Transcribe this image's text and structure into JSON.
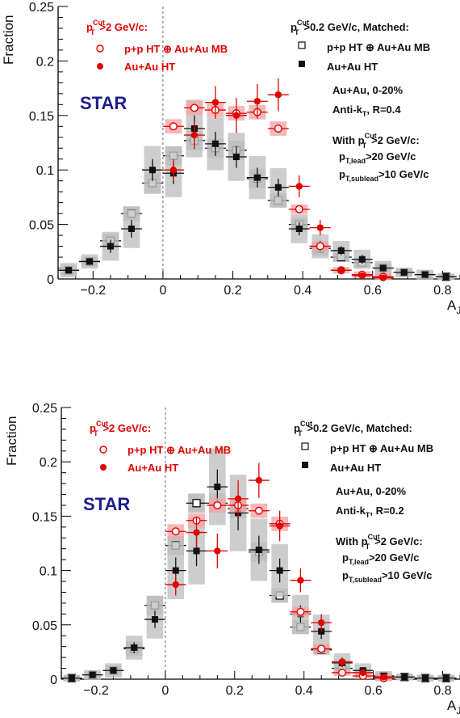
{
  "chart_data": [
    {
      "type": "scatter",
      "xlabel": "A",
      "xlabel_sub": "J",
      "ylabel": "Fraction",
      "xlim": [
        -0.3,
        0.85
      ],
      "ylim": [
        0,
        0.25
      ],
      "xticks": [
        -0.2,
        0,
        0.2,
        0.4,
        0.6,
        0.8
      ],
      "xtick_labels": [
        "−0.2",
        "0",
        "0.2",
        "0.4",
        "0.6",
        "0.8"
      ],
      "yticks": [
        0,
        0.05,
        0.1,
        0.15,
        0.2,
        0.25
      ],
      "ytick_labels": [
        "0",
        "0.05",
        "0.1",
        "0.15",
        "0.2",
        "0.25"
      ],
      "legend_left": {
        "header": {
          "main": "p",
          "sup": "Cut",
          "sub": "T",
          "rest": ">2 GeV/c:"
        },
        "entries": [
          "p+p HT ⊕ Au+Au MB",
          "Au+Au HT"
        ]
      },
      "legend_right": {
        "header": {
          "main": "p",
          "sup": "Cut",
          "sub": "T",
          "rest": ">0.2 GeV/c, Matched:"
        },
        "entries": [
          "p+p HT ⊕ Au+Au MB",
          "Au+Au HT"
        ]
      },
      "star_label": "STAR",
      "annotation": {
        "line1": "Au+Au, 0-20%",
        "line2": {
          "main": "Anti-k",
          "sub": "T",
          "rest": ", R=0.4"
        },
        "line3": {
          "main": "With p",
          "sup": "Cut",
          "sub": "T",
          "rest": ">2 GeV/c:"
        },
        "line4": {
          "main": "p",
          "sub": "T,lead",
          "rest": ">20 GeV/c"
        },
        "line5": {
          "main": "p",
          "sub": "T,sublead",
          "rest": ">10 GeV/c"
        }
      },
      "series": [
        {
          "name": "p+p HT ⊕ Au+Au MB (p_T^Cut > 0.2 GeV/c, Matched)",
          "marker": "open-square",
          "color": "#111111",
          "band": "#b0b0b0",
          "x": [
            -0.27,
            -0.21,
            -0.15,
            -0.09,
            -0.03,
            0.03,
            0.09,
            0.15,
            0.21,
            0.27,
            0.33,
            0.39,
            0.45,
            0.51,
            0.57,
            0.63,
            0.69,
            0.75,
            0.81
          ],
          "y": [
            0.008,
            0.016,
            0.035,
            0.06,
            0.088,
            0.113,
            0.127,
            0.12,
            0.118,
            0.092,
            0.072,
            0.05,
            0.028,
            0.02,
            0.015,
            0.01,
            0.006,
            0.004,
            0.002
          ],
          "yerr": [
            0.002,
            0.002,
            0.003,
            0.003,
            0.004,
            0.004,
            0.004,
            0.004,
            0.004,
            0.004,
            0.003,
            0.003,
            0.003,
            0.002,
            0.002,
            0.002,
            0.001,
            0.001,
            0.001
          ]
        },
        {
          "name": "Au+Au HT (p_T^Cut > 0.2 GeV/c, Matched)",
          "marker": "filled-square",
          "color": "#111111",
          "band": "#c0c0c0",
          "x": [
            -0.27,
            -0.21,
            -0.15,
            -0.09,
            -0.03,
            0.03,
            0.09,
            0.15,
            0.21,
            0.27,
            0.33,
            0.39,
            0.45,
            0.51,
            0.57,
            0.63,
            0.69,
            0.75,
            0.81
          ],
          "y": [
            0.008,
            0.016,
            0.03,
            0.046,
            0.1,
            0.097,
            0.138,
            0.124,
            0.112,
            0.093,
            0.084,
            0.046,
            0.03,
            0.026,
            0.018,
            0.01,
            0.006,
            0.004,
            0.002
          ],
          "yerr": [
            0.003,
            0.003,
            0.006,
            0.008,
            0.01,
            0.01,
            0.012,
            0.011,
            0.01,
            0.009,
            0.008,
            0.006,
            0.005,
            0.004,
            0.004,
            0.003,
            0.002,
            0.002,
            0.001
          ]
        },
        {
          "name": "p+p HT ⊕ Au+Au MB (p_T^Cut > 2 GeV/c)",
          "marker": "open-circle",
          "color": "#e00000",
          "band": "#f4a6a6",
          "x": [
            0.03,
            0.09,
            0.15,
            0.21,
            0.27,
            0.33,
            0.39,
            0.45,
            0.51,
            0.57,
            0.63
          ],
          "y": [
            0.14,
            0.157,
            0.155,
            0.152,
            0.153,
            0.138,
            0.064,
            0.03,
            0.008,
            0.004,
            0.002
          ],
          "yerr": [
            0.003,
            0.003,
            0.003,
            0.003,
            0.003,
            0.003,
            0.002,
            0.002,
            0.001,
            0.001,
            0.001
          ]
        },
        {
          "name": "Au+Au HT (p_T^Cut > 2 GeV/c)",
          "marker": "filled-circle",
          "color": "#e00000",
          "band": "none",
          "x": [
            0.03,
            0.09,
            0.15,
            0.21,
            0.27,
            0.33,
            0.39,
            0.45,
            0.51,
            0.57,
            0.63
          ],
          "y": [
            0.1,
            0.132,
            0.162,
            0.15,
            0.163,
            0.169,
            0.085,
            0.047,
            0.008,
            0.003,
            0.001
          ],
          "yerr": [
            0.01,
            0.013,
            0.015,
            0.016,
            0.016,
            0.015,
            0.01,
            0.007,
            0.003,
            0.002,
            0.001
          ]
        }
      ]
    },
    {
      "type": "scatter",
      "xlabel": "A",
      "xlabel_sub": "J",
      "ylabel": "Fraction",
      "xlim": [
        -0.3,
        0.85
      ],
      "ylim": [
        0,
        0.25
      ],
      "xticks": [
        -0.2,
        0,
        0.2,
        0.4,
        0.6,
        0.8
      ],
      "xtick_labels": [
        "−0.2",
        "0",
        "0.2",
        "0.4",
        "0.6",
        "0.8"
      ],
      "yticks": [
        0,
        0.05,
        0.1,
        0.15,
        0.2,
        0.25
      ],
      "ytick_labels": [
        "0",
        "0.05",
        "0.1",
        "0.15",
        "0.2",
        "0.25"
      ],
      "legend_left": {
        "header": {
          "main": "p",
          "sup": "Cut",
          "sub": "T",
          "rest": ">2 GeV/c:"
        },
        "entries": [
          "p+p HT ⊕ Au+Au MB",
          "Au+Au HT"
        ]
      },
      "legend_right": {
        "header": {
          "main": "p",
          "sup": "Cut",
          "sub": "T",
          "rest": ">0.2 GeV/c, Matched:"
        },
        "entries": [
          "p+p HT ⊕ Au+Au MB",
          "Au+Au HT"
        ]
      },
      "star_label": "STAR",
      "annotation": {
        "line1": "Au+Au, 0-20%",
        "line2": {
          "main": "Anti-k",
          "sub": "T",
          "rest": ", R=0.2"
        },
        "line3": {
          "main": "With p",
          "sup": "Cut",
          "sub": "T",
          "rest": ">2 GeV/c:"
        },
        "line4": {
          "main": "p",
          "sub": "T,lead",
          "rest": ">20 GeV/c"
        },
        "line5": {
          "main": "p",
          "sub": "T,sublead",
          "rest": ">10 GeV/c"
        }
      },
      "series": [
        {
          "name": "p+p HT ⊕ Au+Au MB (p_T^Cut > 0.2 GeV/c, Matched)",
          "marker": "open-square",
          "color": "#111111",
          "band": "#b0b0b0",
          "x": [
            -0.27,
            -0.21,
            -0.15,
            -0.09,
            -0.03,
            0.03,
            0.09,
            0.15,
            0.21,
            0.27,
            0.33,
            0.39,
            0.45,
            0.51,
            0.57,
            0.63,
            0.69,
            0.75,
            0.81
          ],
          "y": [
            0.001,
            0.004,
            0.008,
            0.028,
            0.068,
            0.123,
            0.162,
            0.162,
            0.157,
            0.117,
            0.077,
            0.048,
            0.027,
            0.01,
            0.006,
            0.003,
            0.002,
            0.001,
            0.001
          ],
          "yerr": [
            0.001,
            0.001,
            0.002,
            0.003,
            0.004,
            0.004,
            0.004,
            0.004,
            0.004,
            0.004,
            0.003,
            0.003,
            0.002,
            0.002,
            0.001,
            0.001,
            0.001,
            0.001,
            0.001
          ]
        },
        {
          "name": "Au+Au HT (p_T^Cut > 0.2 GeV/c, Matched)",
          "marker": "filled-square",
          "color": "#111111",
          "band": "#c0c0c0",
          "x": [
            -0.27,
            -0.21,
            -0.15,
            -0.09,
            -0.03,
            0.03,
            0.09,
            0.15,
            0.21,
            0.27,
            0.33,
            0.39,
            0.45,
            0.51,
            0.57,
            0.63,
            0.69,
            0.75,
            0.81
          ],
          "y": [
            0.001,
            0.004,
            0.008,
            0.029,
            0.055,
            0.1,
            0.118,
            0.177,
            0.153,
            0.119,
            0.1,
            0.06,
            0.044,
            0.015,
            0.008,
            0.003,
            0.002,
            0.001,
            0.001
          ],
          "yerr": [
            0.001,
            0.002,
            0.003,
            0.005,
            0.008,
            0.012,
            0.014,
            0.016,
            0.016,
            0.013,
            0.011,
            0.008,
            0.007,
            0.004,
            0.003,
            0.002,
            0.001,
            0.001,
            0.001
          ]
        },
        {
          "name": "p+p HT ⊕ Au+Au MB (p_T^Cut > 2 GeV/c)",
          "marker": "open-circle",
          "color": "#e00000",
          "band": "#f4a6a6",
          "x": [
            0.03,
            0.09,
            0.15,
            0.21,
            0.27,
            0.33,
            0.39,
            0.45,
            0.51,
            0.57,
            0.63
          ],
          "y": [
            0.136,
            0.146,
            0.16,
            0.16,
            0.155,
            0.143,
            0.062,
            0.028,
            0.006,
            0.003,
            0.001
          ],
          "yerr": [
            0.003,
            0.003,
            0.003,
            0.003,
            0.003,
            0.003,
            0.002,
            0.002,
            0.001,
            0.001,
            0.001
          ]
        },
        {
          "name": "Au+Au HT (p_T^Cut > 2 GeV/c)",
          "marker": "filled-circle",
          "color": "#e00000",
          "band": "none",
          "x": [
            0.03,
            0.09,
            0.15,
            0.21,
            0.27,
            0.33,
            0.39,
            0.45,
            0.51,
            0.57,
            0.63
          ],
          "y": [
            0.087,
            0.135,
            0.118,
            0.166,
            0.183,
            0.141,
            0.091,
            0.052,
            0.016,
            0.006,
            0.002
          ],
          "yerr": [
            0.01,
            0.014,
            0.016,
            0.017,
            0.016,
            0.014,
            0.011,
            0.008,
            0.004,
            0.002,
            0.001
          ]
        }
      ]
    }
  ]
}
